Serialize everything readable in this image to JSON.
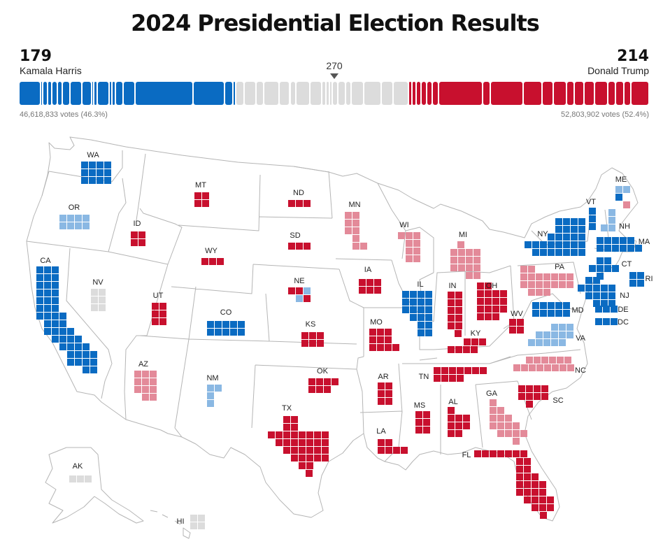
{
  "title": "2024 Presidential Election Results",
  "harris": {
    "ev": "179",
    "name": "Kamala Harris",
    "votes": "46,618,833 votes (46.3%)"
  },
  "trump": {
    "ev": "214",
    "name": "Donald Trump",
    "votes": "52,803,902 votes (52.4%)"
  },
  "threshold": "270",
  "colors": {
    "dem": "#0a6bc2",
    "dem_lean": "#8ab8e3",
    "rep": "#c8102e",
    "rep_lean": "#e38a99",
    "undecided": "#dcdcdc",
    "border": "#b5b5b5"
  },
  "bar_segments": [
    {
      "ev": 19,
      "party": "dem"
    },
    {
      "ev": 1,
      "party": "dem"
    },
    {
      "ev": 3,
      "party": "dem"
    },
    {
      "ev": 3,
      "party": "dem"
    },
    {
      "ev": 4,
      "party": "dem"
    },
    {
      "ev": 3,
      "party": "dem"
    },
    {
      "ev": 6,
      "party": "dem"
    },
    {
      "ev": 10,
      "party": "dem"
    },
    {
      "ev": 8,
      "party": "dem"
    },
    {
      "ev": 1,
      "party": "dem"
    },
    {
      "ev": 2,
      "party": "dem"
    },
    {
      "ev": 10,
      "party": "dem"
    },
    {
      "ev": 1,
      "party": "dem"
    },
    {
      "ev": 2,
      "party": "dem"
    },
    {
      "ev": 6,
      "party": "dem"
    },
    {
      "ev": 10,
      "party": "dem"
    },
    {
      "ev": 54,
      "party": "dem"
    },
    {
      "ev": 28,
      "party": "dem"
    },
    {
      "ev": 7,
      "party": "dem"
    },
    {
      "ev": 1,
      "party": "dem"
    },
    {
      "ev": 7,
      "party": "undecided"
    },
    {
      "ev": 10,
      "party": "undecided"
    },
    {
      "ev": 6,
      "party": "undecided"
    },
    {
      "ev": 13,
      "party": "undecided"
    },
    {
      "ev": 9,
      "party": "undecided"
    },
    {
      "ev": 4,
      "party": "undecided"
    },
    {
      "ev": 12,
      "party": "undecided"
    },
    {
      "ev": 10,
      "party": "undecided"
    },
    {
      "ev": 3,
      "party": "undecided"
    },
    {
      "ev": 2,
      "party": "undecided"
    },
    {
      "ev": 1,
      "party": "undecided"
    },
    {
      "ev": 4,
      "party": "undecided"
    },
    {
      "ev": 6,
      "party": "undecided"
    },
    {
      "ev": 4,
      "party": "undecided"
    },
    {
      "ev": 11,
      "party": "undecided"
    },
    {
      "ev": 15,
      "party": "undecided"
    },
    {
      "ev": 10,
      "party": "undecided"
    },
    {
      "ev": 13,
      "party": "undecided"
    },
    {
      "ev": 2,
      "party": "rep"
    },
    {
      "ev": 3,
      "party": "rep"
    },
    {
      "ev": 3,
      "party": "rep"
    },
    {
      "ev": 4,
      "party": "rep"
    },
    {
      "ev": 4,
      "party": "rep"
    },
    {
      "ev": 5,
      "party": "rep"
    },
    {
      "ev": 40,
      "party": "rep"
    },
    {
      "ev": 6,
      "party": "rep"
    },
    {
      "ev": 30,
      "party": "rep"
    },
    {
      "ev": 17,
      "party": "rep"
    },
    {
      "ev": 9,
      "party": "rep"
    },
    {
      "ev": 11,
      "party": "rep"
    },
    {
      "ev": 6,
      "party": "rep"
    },
    {
      "ev": 8,
      "party": "rep"
    },
    {
      "ev": 9,
      "party": "rep"
    },
    {
      "ev": 11,
      "party": "rep"
    },
    {
      "ev": 6,
      "party": "rep"
    },
    {
      "ev": 7,
      "party": "rep"
    },
    {
      "ev": 5,
      "party": "rep"
    },
    {
      "ev": 16,
      "party": "rep"
    }
  ],
  "states": [
    {
      "id": "WA",
      "label": "WA",
      "party": "dem",
      "cols": 4,
      "ev": 12
    },
    {
      "id": "OR",
      "label": "OR",
      "party": "dem_lean",
      "cols": 4,
      "ev": 8
    },
    {
      "id": "CA",
      "label": "CA",
      "party": "dem",
      "ev": 54
    },
    {
      "id": "NV",
      "label": "NV",
      "party": "undecided",
      "cols": 2,
      "ev": 6
    },
    {
      "id": "ID",
      "label": "ID",
      "party": "rep",
      "cols": 2,
      "ev": 4
    },
    {
      "id": "MT",
      "label": "MT",
      "party": "rep",
      "cols": 2,
      "ev": 4
    },
    {
      "id": "WY",
      "label": "WY",
      "party": "rep",
      "cols": 3,
      "ev": 3
    },
    {
      "id": "UT",
      "label": "UT",
      "party": "rep",
      "cols": 2,
      "ev": 6
    },
    {
      "id": "AZ",
      "label": "AZ",
      "party": "rep_lean",
      "ev": 11
    },
    {
      "id": "CO",
      "label": "CO",
      "party": "dem",
      "cols": 5,
      "ev": 10
    },
    {
      "id": "NM",
      "label": "NM",
      "party": "dem_lean",
      "ev": 5
    },
    {
      "id": "ND",
      "label": "ND",
      "party": "rep",
      "cols": 3,
      "ev": 3
    },
    {
      "id": "SD",
      "label": "SD",
      "party": "rep",
      "cols": 3,
      "ev": 3
    },
    {
      "id": "NE",
      "label": "NE",
      "party": "rep",
      "ev": 5
    },
    {
      "id": "KS",
      "label": "KS",
      "party": "rep",
      "cols": 3,
      "ev": 6
    },
    {
      "id": "OK",
      "label": "OK",
      "party": "rep",
      "cols": 4,
      "ev": 7
    },
    {
      "id": "TX",
      "label": "TX",
      "party": "rep",
      "ev": 40
    },
    {
      "id": "MN",
      "label": "MN",
      "party": "rep_lean",
      "ev": 10
    },
    {
      "id": "IA",
      "label": "IA",
      "party": "rep",
      "cols": 3,
      "ev": 6
    },
    {
      "id": "MO",
      "label": "MO",
      "party": "rep",
      "ev": 10
    },
    {
      "id": "AR",
      "label": "AR",
      "party": "rep",
      "cols": 2,
      "ev": 6
    },
    {
      "id": "LA",
      "label": "LA",
      "party": "rep",
      "ev": 8
    },
    {
      "id": "WI",
      "label": "WI",
      "party": "rep_lean",
      "ev": 10
    },
    {
      "id": "IL",
      "label": "IL",
      "party": "dem",
      "ev": 19
    },
    {
      "id": "MI",
      "label": "MI",
      "party": "rep_lean",
      "ev": 15
    },
    {
      "id": "IN",
      "label": "IN",
      "party": "rep",
      "ev": 11
    },
    {
      "id": "OH",
      "label": "OH",
      "party": "rep",
      "ev": 17
    },
    {
      "id": "KY",
      "label": "KY",
      "party": "rep",
      "ev": 8
    },
    {
      "id": "TN",
      "label": "TN",
      "party": "rep",
      "ev": 11
    },
    {
      "id": "MS",
      "label": "MS",
      "party": "rep",
      "cols": 2,
      "ev": 6
    },
    {
      "id": "AL",
      "label": "AL",
      "party": "rep",
      "ev": 9
    },
    {
      "id": "GA",
      "label": "GA",
      "party": "rep_lean",
      "ev": 16
    },
    {
      "id": "FL",
      "label": "FL",
      "party": "rep",
      "ev": 30
    },
    {
      "id": "SC",
      "label": "SC",
      "party": "rep",
      "ev": 9
    },
    {
      "id": "NC",
      "label": "NC",
      "party": "rep_lean",
      "ev": 16
    },
    {
      "id": "VA",
      "label": "VA",
      "party": "dem_lean",
      "ev": 13
    },
    {
      "id": "WV",
      "label": "WV",
      "party": "rep",
      "cols": 2,
      "ev": 4
    },
    {
      "id": "PA",
      "label": "PA",
      "party": "rep_lean",
      "ev": 19
    },
    {
      "id": "NY",
      "label": "NY",
      "party": "dem",
      "ev": 28
    },
    {
      "id": "NJ",
      "label": "NJ",
      "party": "dem",
      "ev": 14
    },
    {
      "id": "MD",
      "label": "MD",
      "party": "dem",
      "cols": 5,
      "ev": 10
    },
    {
      "id": "DE",
      "label": "DE",
      "party": "dem",
      "cols": 3,
      "ev": 3
    },
    {
      "id": "DC",
      "label": "DC",
      "party": "dem",
      "cols": 3,
      "ev": 3
    },
    {
      "id": "CT",
      "label": "CT",
      "party": "dem",
      "ev": 7
    },
    {
      "id": "RI",
      "label": "RI",
      "party": "dem",
      "cols": 2,
      "ev": 4
    },
    {
      "id": "MA",
      "label": "MA",
      "party": "dem",
      "ev": 11
    },
    {
      "id": "VT",
      "label": "VT",
      "party": "dem",
      "ev": 3
    },
    {
      "id": "NH",
      "label": "NH",
      "party": "dem_lean",
      "ev": 4
    },
    {
      "id": "ME",
      "label": "ME",
      "party": "dem_lean",
      "ev": 4
    },
    {
      "id": "AK",
      "label": "AK",
      "party": "undecided",
      "cols": 3,
      "ev": 3
    },
    {
      "id": "HI",
      "label": "HI",
      "party": "undecided",
      "cols": 2,
      "ev": 4
    }
  ]
}
